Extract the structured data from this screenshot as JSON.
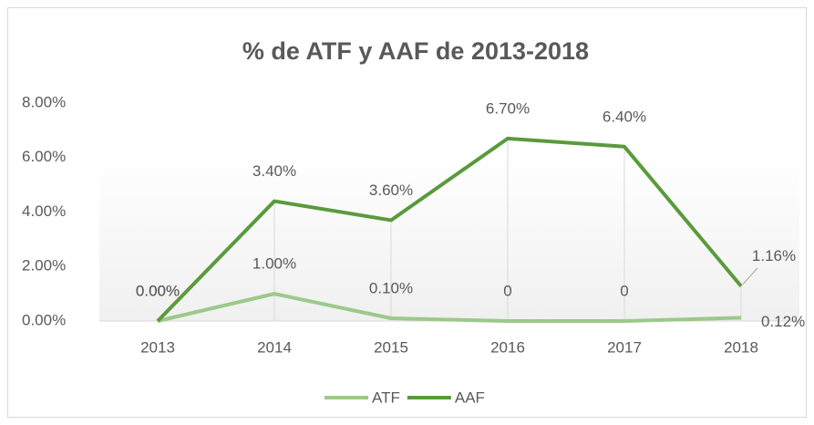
{
  "chart_data": {
    "type": "line",
    "stacked": true,
    "title": "% de ATF y AAF de 2013-2018",
    "categories": [
      "2013",
      "2014",
      "2015",
      "2016",
      "2017",
      "2018"
    ],
    "series": [
      {
        "name": "ATF",
        "color": "#9cc98a",
        "values": [
          0,
          1.0,
          0.1,
          0,
          0,
          0.12
        ],
        "value_labels": [
          "0.00%",
          "1.00%",
          "0.10%",
          "0",
          "0",
          "0.12%"
        ]
      },
      {
        "name": "AAF",
        "color": "#5a9a3c",
        "values": [
          0,
          3.4,
          3.6,
          6.7,
          6.4,
          1.16
        ],
        "value_labels": [
          "0.00%",
          "3.40%",
          "3.60%",
          "6.70%",
          "6.40%",
          "1.16%"
        ]
      }
    ],
    "ylim": [
      0,
      8
    ],
    "yticks": [
      {
        "value": 0,
        "label": "0.00%"
      },
      {
        "value": 2,
        "label": "2.00%"
      },
      {
        "value": 4,
        "label": "4.00%"
      },
      {
        "value": 6,
        "label": "6.00%"
      },
      {
        "value": 8,
        "label": "8.00%"
      }
    ],
    "grid": false,
    "drop_lines": true,
    "legend": "bottom"
  }
}
